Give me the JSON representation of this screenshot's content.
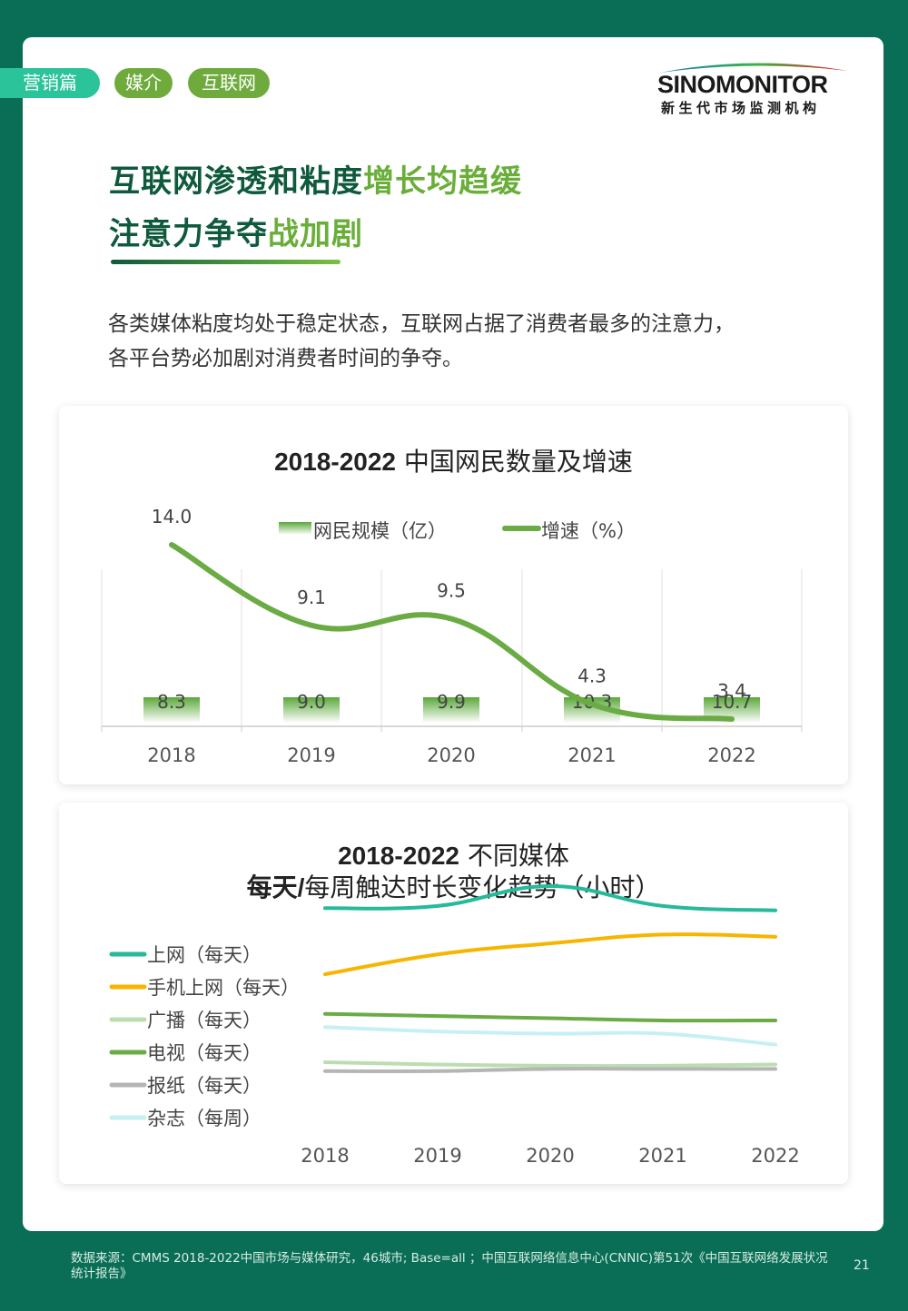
{
  "tags": [
    "营销篇",
    "媒介",
    "互联网"
  ],
  "logo": {
    "name": "SINOMONITOR",
    "subtitle": "新生代市场监测机构"
  },
  "headline": {
    "line1_main": "互联网渗透和粘度",
    "line1_accent": "增长均趋缓",
    "line2_main": "注意力争夺",
    "line2_accent": "战加剧"
  },
  "intro": {
    "line1": "各类媒体粘度均处于稳定状态，互联网占据了消费者最多的注意力，",
    "line2": "各平台势必加剧对消费者时间的争夺。"
  },
  "chart_data": [
    {
      "type": "bar",
      "title_bold": "2018-2022",
      "title_rest": " 中国网民数量及增速",
      "categories": [
        "2018",
        "2019",
        "2020",
        "2021",
        "2022"
      ],
      "series": [
        {
          "name": "网民规模（亿）",
          "type": "bar",
          "values": [
            8.3,
            9.0,
            9.9,
            10.3,
            10.7
          ],
          "color": "#5aa83a"
        },
        {
          "name": "增速（%）",
          "type": "line",
          "values": [
            14.0,
            9.1,
            9.5,
            4.3,
            3.4
          ],
          "color": "#6aab44"
        }
      ],
      "labels": {
        "bar": [
          "8.3",
          "9.0",
          "9.9",
          "10.3",
          "10.7"
        ],
        "line": [
          "14.0",
          "9.1",
          "9.5",
          "4.3",
          "3.4"
        ]
      },
      "legend": "top-center",
      "grid": "vertical"
    },
    {
      "type": "line",
      "title_line1_bold": "2018-2022",
      "title_line1_rest": " 不同媒体",
      "title_line2_bold": "每天/",
      "title_line2_rest": "每周触达时长变化趋势（小时）",
      "categories": [
        "2018",
        "2019",
        "2020",
        "2021",
        "2022"
      ],
      "series": [
        {
          "name": "上网（每天）",
          "values": [
            4.2,
            4.25,
            4.7,
            4.25,
            4.15
          ],
          "color": "#26b99a"
        },
        {
          "name": "手机上网（每天）",
          "values": [
            2.7,
            3.15,
            3.4,
            3.6,
            3.55
          ],
          "color": "#f7b500"
        },
        {
          "name": "广播（每天）",
          "values": [
            0.7,
            0.65,
            0.62,
            0.62,
            0.65
          ],
          "color": "#bcddb0"
        },
        {
          "name": "电视（每天）",
          "values": [
            1.8,
            1.75,
            1.7,
            1.65,
            1.65
          ],
          "color": "#6aab44"
        },
        {
          "name": "报纸（每天）",
          "values": [
            0.5,
            0.5,
            0.55,
            0.55,
            0.55
          ],
          "color": "#b5b5b5"
        },
        {
          "name": "杂志（每周）",
          "values": [
            1.5,
            1.4,
            1.35,
            1.35,
            1.1
          ],
          "color": "#c6f0f4"
        }
      ],
      "legend": "left",
      "grid": "none"
    }
  ],
  "footer": {
    "source": "数据来源：CMMS 2018-2022中国市场与媒体研究，46城市; Base=all ；中国互联网络信息中心(CNNIC)第51次《中国互联网络发展状况统计报告》",
    "page": "21"
  }
}
